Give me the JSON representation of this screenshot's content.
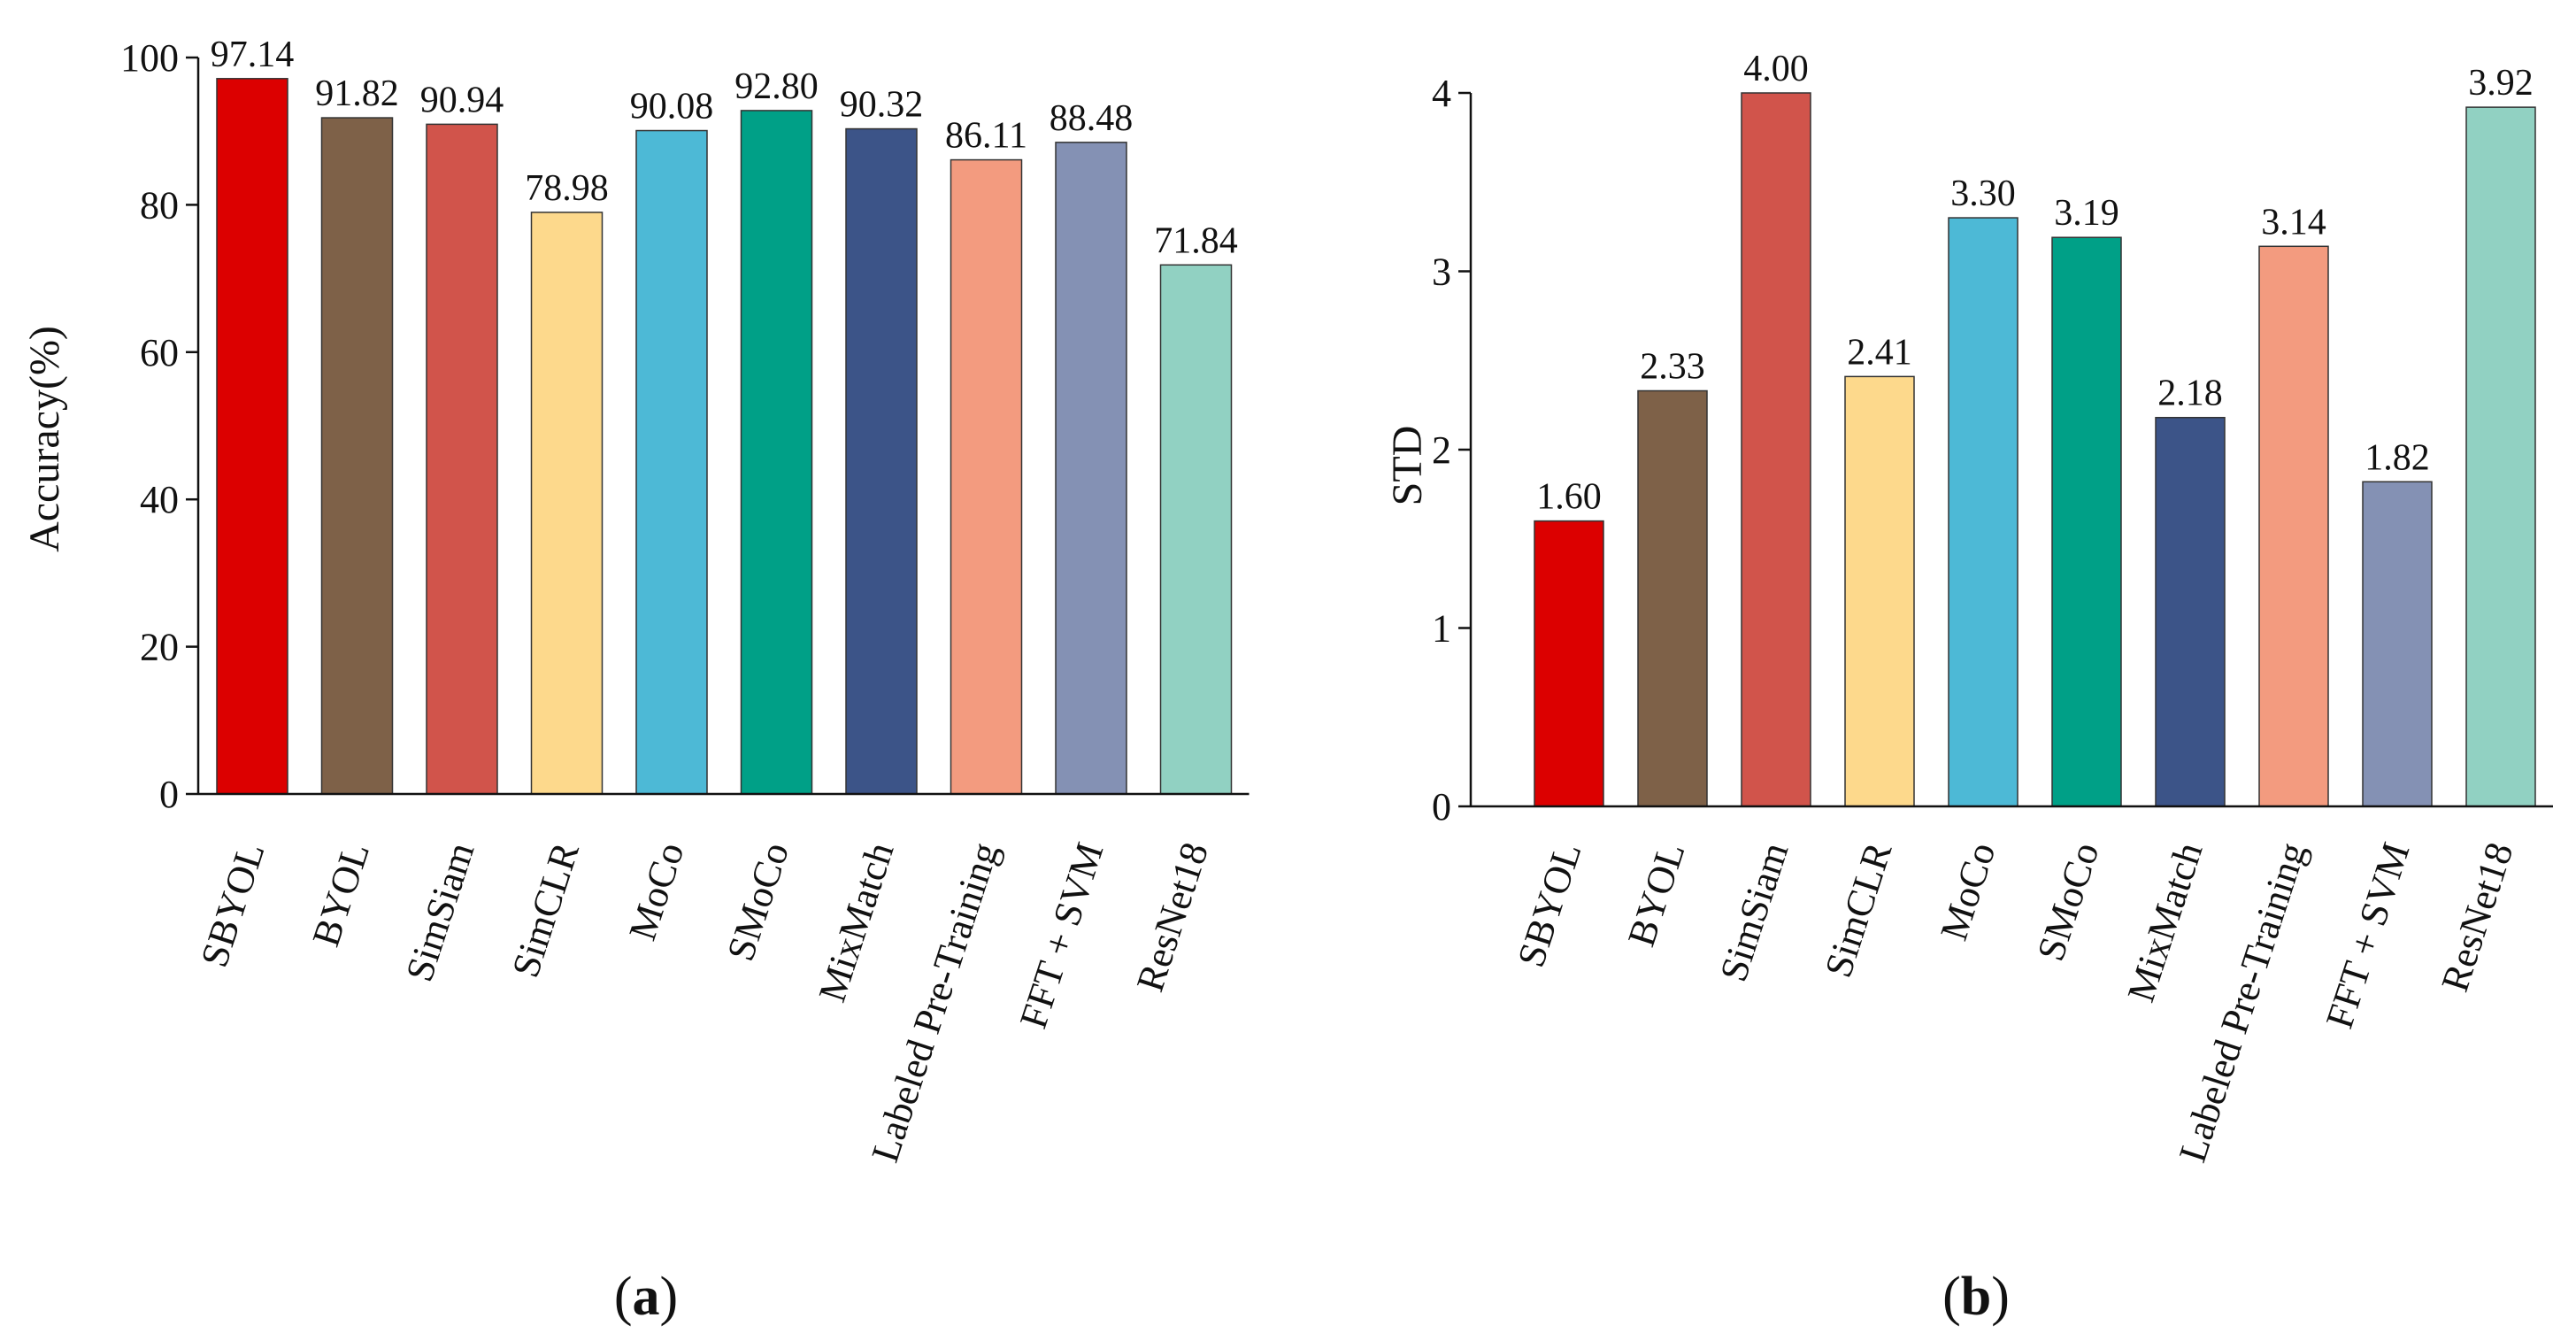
{
  "categories": [
    "SBYOL",
    "BYOL",
    "SimSiam",
    "SimCLR",
    "MoCo",
    "SMoCo",
    "MixMatch",
    "Labeled Pre-Training",
    "FFT + SVM",
    "ResNet18"
  ],
  "colors": [
    "#dc0000",
    "#7e6148",
    "#d1544b",
    "#fdd98c",
    "#4db9d6",
    "#00a087",
    "#3c5488",
    "#f39b7f",
    "#8491b4",
    "#91d1c2"
  ],
  "chart_data": [
    {
      "type": "bar",
      "caption": {
        "open": "(",
        "letter": "a",
        "close": ")"
      },
      "ylabel": "Accuracy(%)",
      "ylim": [
        0,
        100
      ],
      "yticks": [
        0,
        20,
        40,
        60,
        80,
        100
      ],
      "categories": [
        "SBYOL",
        "BYOL",
        "SimSiam",
        "SimCLR",
        "MoCo",
        "SMoCo",
        "MixMatch",
        "Labeled Pre-Training",
        "FFT + SVM",
        "ResNet18"
      ],
      "values": [
        97.14,
        91.82,
        90.94,
        78.98,
        90.08,
        92.8,
        90.32,
        86.11,
        88.48,
        71.84
      ],
      "value_labels": [
        "97.14",
        "91.82",
        "90.94",
        "78.98",
        "90.08",
        "92.80",
        "90.32",
        "86.11",
        "88.48",
        "71.84"
      ]
    },
    {
      "type": "bar",
      "caption": {
        "open": "(",
        "letter": "b",
        "close": ")"
      },
      "ylabel": "STD",
      "ylim": [
        0,
        4
      ],
      "yticks": [
        0,
        1,
        2,
        3,
        4
      ],
      "categories": [
        "SBYOL",
        "BYOL",
        "SimSiam",
        "SimCLR",
        "MoCo",
        "SMoCo",
        "MixMatch",
        "Labeled Pre-Training",
        "FFT + SVM",
        "ResNet18"
      ],
      "values": [
        1.6,
        2.33,
        4.0,
        2.41,
        3.3,
        3.19,
        2.18,
        3.14,
        1.82,
        3.92
      ],
      "value_labels": [
        "1.60",
        "2.33",
        "4.00",
        "2.41",
        "3.30",
        "3.19",
        "2.18",
        "3.14",
        "1.82",
        "3.92"
      ]
    }
  ]
}
